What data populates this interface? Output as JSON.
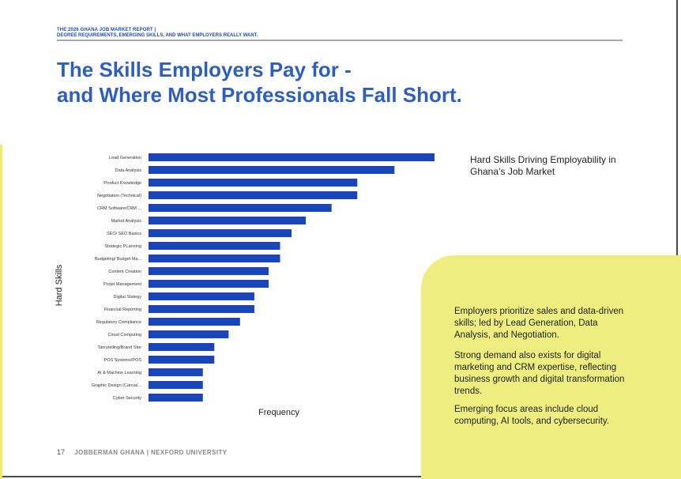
{
  "header": {
    "line1": "THE 2026 GHANA JOB MARKET REPORT |",
    "line2": "DEGREE REQUIREMENTS, EMERGING SKILLS, AND WHAT EMPLOYERS REALLY WANT."
  },
  "title": {
    "line1": "The Skills Employers Pay for -",
    "line2": "and Where Most Professionals Fall Short."
  },
  "chart_data": {
    "type": "bar",
    "orientation": "horizontal",
    "title": "Hard Skills Driving Employability in Ghana’s Job Market",
    "xlabel": "Frequency",
    "ylabel": "Hard Skills",
    "categories": [
      "Lead Generation",
      "Data Analysis",
      "Product Knowledge",
      "Negotiation (Technical)",
      "CRM Software/CRM ...",
      "Market Analysis",
      "SEO/ SEO Basics",
      "Strategic PLanning",
      "Budgeting/ Budget Ma...",
      "Content Creation",
      "Projet Management",
      "Digital Stategy",
      "Financial Reporting",
      "Regulatory Compliance",
      "Cloud Computing",
      "Storytelling/Brand Stor",
      "POS Systems/POS",
      "AI & Machine Learning",
      "Graphic Design (Canva/...",
      "Cyber Security"
    ],
    "values": [
      100,
      86,
      73,
      73,
      64,
      55,
      50,
      46,
      46,
      42,
      42,
      37,
      37,
      32,
      28,
      23,
      23,
      19,
      19,
      19
    ],
    "xlim": [
      0,
      100
    ],
    "color": "#1a45b8",
    "grid": false
  },
  "panel": {
    "p1": "Employers prioritize sales and data-driven skills; led by Lead Generation, Data Analysis, and Negotiation.",
    "p2": "Strong demand also exists for digital marketing  and CRM expertise, reflecting business growth and digital transformation trends.",
    "p3": "Emerging focus areas include cloud computing, AI tools, and cybersecurity."
  },
  "footer": {
    "page_number": "17",
    "brand": "JOBBERMAN GHANA | NEXFORD UNIVERSITY"
  },
  "colors": {
    "title": "#2f5fb8",
    "bar": "#1a45b8",
    "panel": "#eeee80",
    "accent": "#eeee66"
  }
}
